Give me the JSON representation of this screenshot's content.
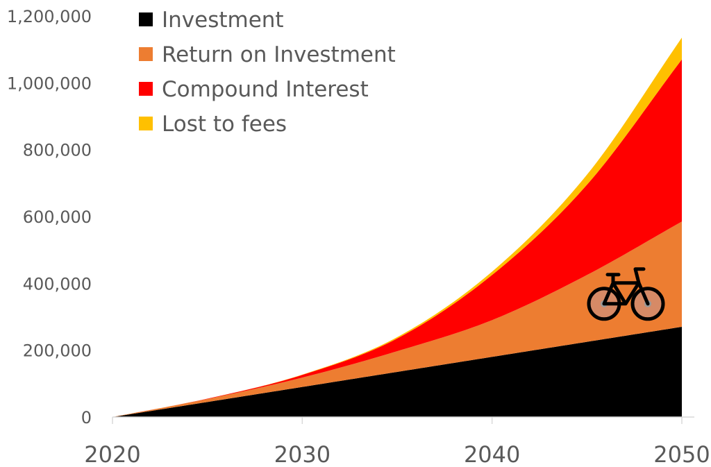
{
  "chart_data": {
    "type": "area",
    "stacked": true,
    "x": [
      2020,
      2025,
      2030,
      2035,
      2040,
      2045,
      2050
    ],
    "series": [
      {
        "name": "Investment",
        "color": "#000000",
        "values": [
          0,
          45000,
          90000,
          135000,
          180000,
          225000,
          270000
        ]
      },
      {
        "name": "Return on Investment",
        "color": "#ED7D31",
        "values": [
          0,
          9000,
          28000,
          62000,
          110000,
          200000,
          315000
        ]
      },
      {
        "name": "Compound Interest",
        "color": "#FF0000",
        "values": [
          0,
          1000,
          8000,
          38000,
          135000,
          270000,
          485000
        ]
      },
      {
        "name": "Lost to fees",
        "color": "#FFC000",
        "values": [
          0,
          0,
          1000,
          4000,
          10000,
          30000,
          65000
        ]
      }
    ],
    "xticks": [
      "2020",
      "2030",
      "2040",
      "2050"
    ],
    "xtick_values": [
      2020,
      2030,
      2040,
      2050
    ],
    "yticks": [
      "0",
      "200,000",
      "400,000",
      "600,000",
      "800,000",
      "1,000,000",
      "1,200,000"
    ],
    "ytick_values": [
      0,
      200000,
      400000,
      600000,
      800000,
      1000000,
      1200000
    ],
    "xlim": [
      2020,
      2050
    ],
    "ylim": [
      0,
      1200000
    ],
    "grid": false,
    "legend": "top-left",
    "annotations": [
      {
        "icon": "bicycle-icon",
        "x": 2047,
        "y": 370000
      }
    ]
  }
}
